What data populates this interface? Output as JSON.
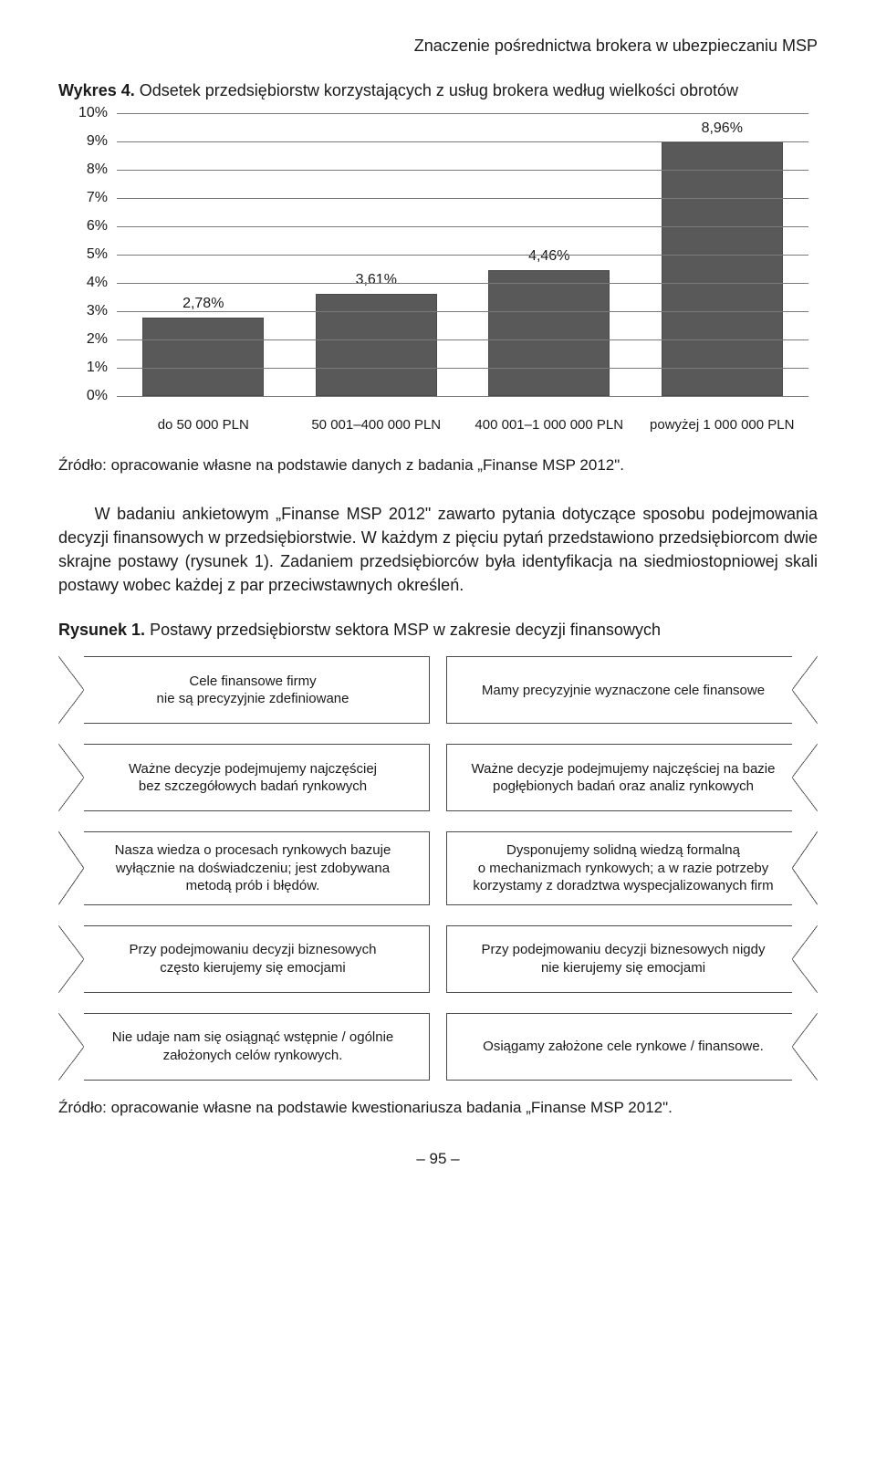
{
  "header": {
    "running_title": "Znaczenie pośrednictwa brokera w ubezpieczaniu MSP"
  },
  "chart": {
    "type": "bar",
    "title_prefix": "Wykres 4.",
    "title": "Odsetek przedsiębiorstw korzystających z usług brokera według wielkości obrotów",
    "categories": [
      "do 50 000 PLN",
      "50 001–400 000 PLN",
      "400 001–1 000 000 PLN",
      "powyżej 1 000 000 PLN"
    ],
    "values": [
      2.78,
      3.61,
      4.46,
      8.96
    ],
    "value_labels": [
      "2,78%",
      "3,61%",
      "4,46%",
      "8,96%"
    ],
    "bar_color": "#595959",
    "grid_color": "#7a7a7a",
    "background_color": "#ffffff",
    "ylim": [
      0,
      10
    ],
    "ytick_step": 1,
    "ytick_labels": [
      "0%",
      "1%",
      "2%",
      "3%",
      "4%",
      "5%",
      "6%",
      "7%",
      "8%",
      "9%",
      "10%"
    ],
    "xlabel_fontsize": 15,
    "value_label_fontsize": 16,
    "source": "Źródło: opracowanie własne na podstawie danych z badania „Finanse MSP 2012\"."
  },
  "body": {
    "para1": "W badaniu ankietowym „Finanse MSP 2012\" zawarto pytania dotyczące sposobu podejmowania decyzji finansowych w przedsiębiorstwie. W każdym z pięciu pytań przedstawiono przedsiębiorcom dwie skrajne postawy (rysunek 1). Zadaniem przedsiębiorców była identyfikacja na siedmiostopniowej skali postawy wobec każdej z par przeciwstawnych określeń."
  },
  "figure": {
    "title_prefix": "Rysunek 1.",
    "title": "Postawy przedsiębiorstw sektora MSP w zakresie decyzji finansowych",
    "rows": [
      {
        "left": "Cele finansowe firmy\nnie są precyzyjnie zdefiniowane",
        "right": "Mamy precyzyjnie wyznaczone cele finansowe"
      },
      {
        "left": "Ważne decyzje podejmujemy najczęściej\nbez szczegółowych badań rynkowych",
        "right": "Ważne decyzje podejmujemy najczęściej na bazie\npogłębionych badań oraz analiz rynkowych"
      },
      {
        "left": "Nasza wiedza o procesach rynkowych bazuje\nwyłącznie na doświadczeniu; jest zdobywana\nmetodą prób i błędów.",
        "right": "Dysponujemy solidną wiedzą formalną\no mechanizmach rynkowych; a w razie potrzeby\nkorzystamy z doradztwa wyspecjalizowanych firm"
      },
      {
        "left": "Przy podejmowaniu decyzji biznesowych\nczęsto kierujemy się emocjami",
        "right": "Przy podejmowaniu decyzji biznesowych nigdy\nnie kierujemy się emocjami"
      },
      {
        "left": "Nie udaje nam się osiągnąć wstępnie / ogólnie\nzałożonych celów rynkowych.",
        "right": "Osiągamy założone cele rynkowe / finansowe."
      }
    ],
    "border_color": "#4a4a4a",
    "source": "Źródło: opracowanie własne na podstawie kwestionariusza badania „Finanse MSP 2012\"."
  },
  "page_number": "– 95 –"
}
